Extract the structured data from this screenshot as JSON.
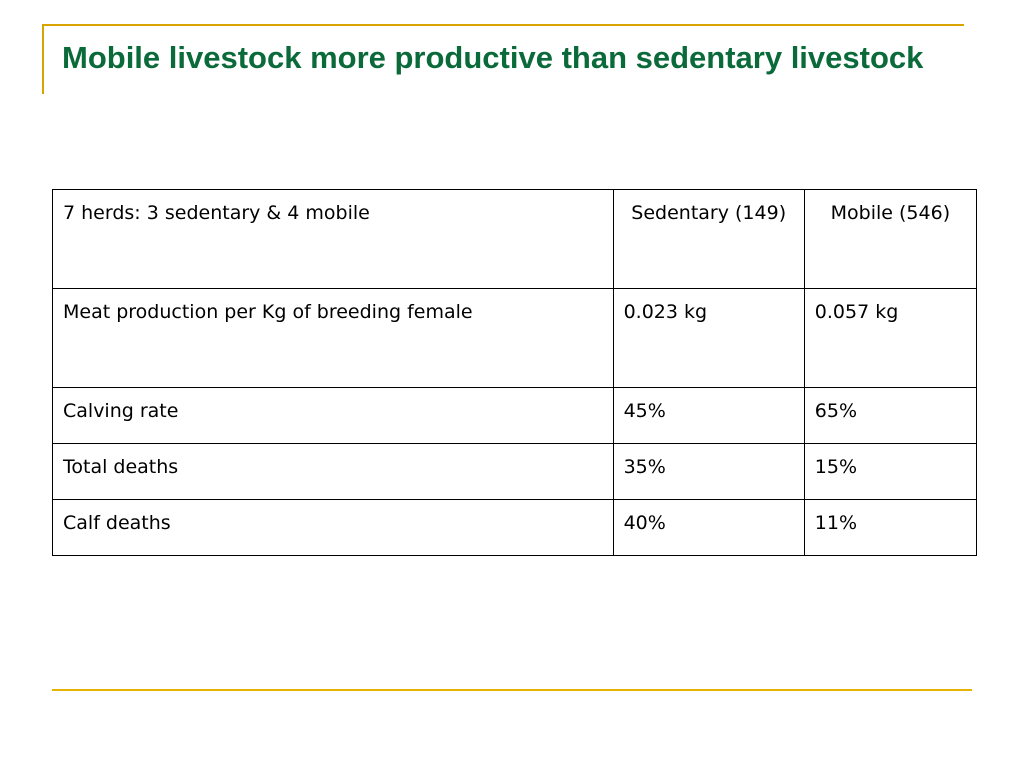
{
  "slide": {
    "title": "Mobile livestock more productive than sedentary livestock"
  },
  "table": {
    "header": {
      "label": "7 herds: 3 sedentary & 4 mobile",
      "sedentary": "Sedentary (149)",
      "mobile": "Mobile (546)"
    },
    "rows": [
      {
        "label": "Meat production per Kg of breeding female",
        "sedentary": "0.023 kg",
        "mobile": "0.057 kg"
      },
      {
        "label": "Calving rate",
        "sedentary": "45%",
        "mobile": "65%"
      },
      {
        "label": "Total deaths",
        "sedentary": "35%",
        "mobile": "15%"
      },
      {
        "label": "Calf deaths",
        "sedentary": "40%",
        "mobile": "11%"
      }
    ]
  },
  "colors": {
    "title": "#0b6a3a",
    "accent": "#d9a400"
  }
}
